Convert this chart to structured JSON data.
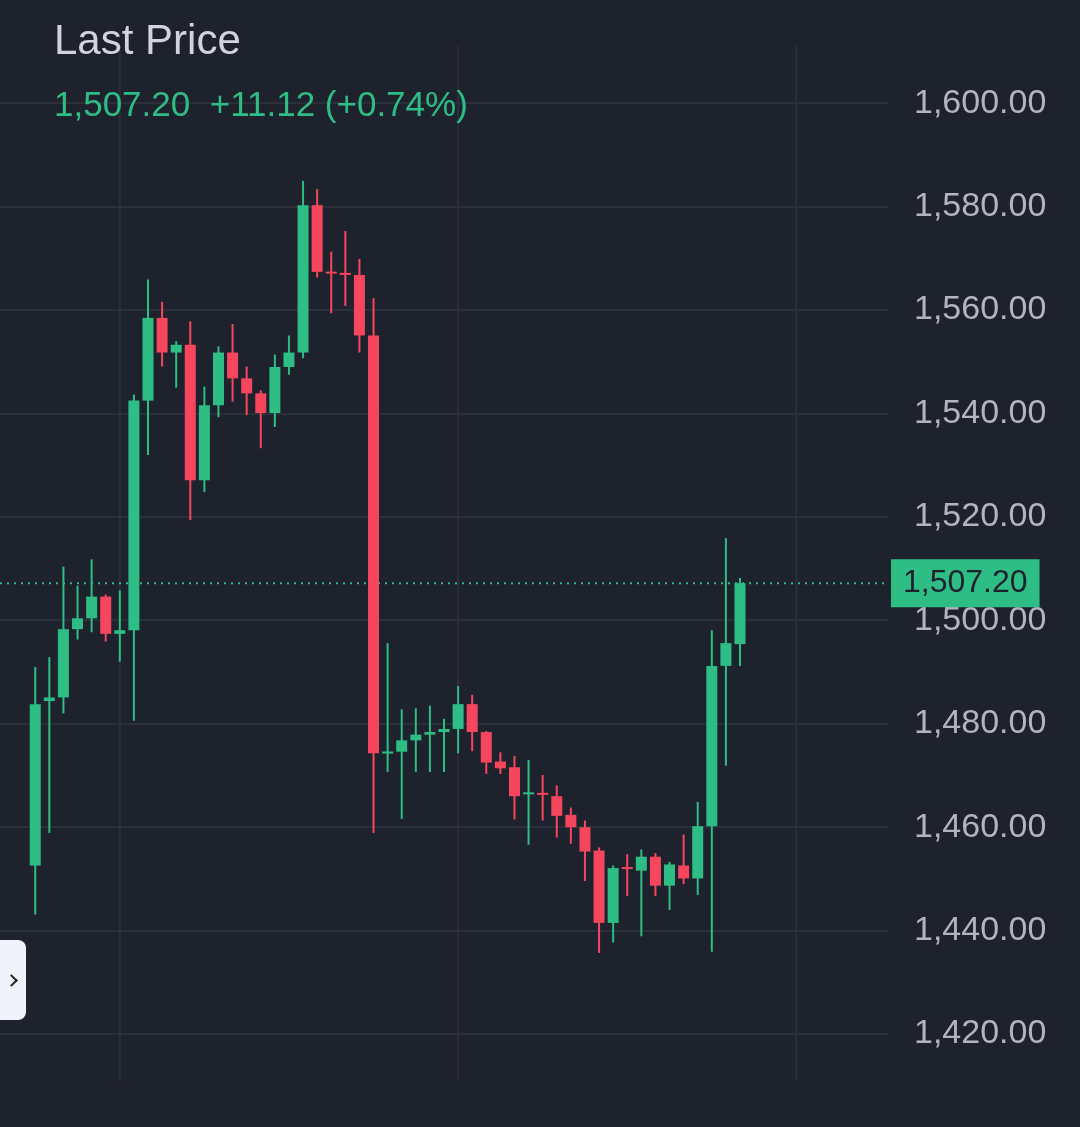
{
  "chart_data": {
    "type": "candlestick",
    "title": "Last Price",
    "subtitle": "1,507.20  +11.12 (+0.74%)",
    "categories": [
      null,
      null,
      null,
      null,
      null,
      null,
      null,
      null,
      null,
      null,
      null,
      null,
      null,
      null,
      null,
      null,
      null,
      null,
      null,
      null,
      null,
      null,
      null,
      null,
      null,
      null,
      null,
      null,
      null,
      null,
      null,
      null,
      null,
      null,
      null,
      null,
      null,
      null,
      null,
      null,
      null,
      null,
      null,
      null,
      null,
      null,
      null,
      null,
      null,
      null,
      null,
      null,
      null,
      null,
      null,
      null,
      null,
      null,
      null,
      null,
      null,
      null,
      null
    ],
    "ohlc": [
      null,
      null,
      [
        1452.6,
        1491.0,
        1443.1,
        1483.8
      ],
      [
        1484.4,
        1492.9,
        1458.9,
        1485.1
      ],
      [
        1485.1,
        1510.4,
        1482.0,
        1498.3
      ],
      [
        1498.3,
        1506.7,
        1496.3,
        1500.4
      ],
      [
        1500.4,
        1511.8,
        1497.7,
        1504.6
      ],
      [
        1504.6,
        1505.0,
        1495.9,
        1497.4
      ],
      [
        1497.4,
        1505.8,
        1492.0,
        1498.1
      ],
      [
        1498.1,
        1543.7,
        1480.6,
        1542.5
      ],
      [
        1542.5,
        1565.9,
        1532.0,
        1558.5
      ],
      [
        1558.5,
        1561.6,
        1549.1,
        1551.8
      ],
      [
        1551.8,
        1554.0,
        1545.0,
        1553.3
      ],
      [
        1553.3,
        1557.8,
        1519.4,
        1527.1
      ],
      [
        1527.1,
        1545.2,
        1524.8,
        1541.6
      ],
      [
        1541.6,
        1553.0,
        1539.3,
        1551.8
      ],
      [
        1551.8,
        1557.3,
        1542.3,
        1546.8
      ],
      [
        1546.8,
        1549.1,
        1539.7,
        1543.9
      ],
      [
        1543.9,
        1544.5,
        1533.3,
        1540.1
      ],
      [
        1540.1,
        1551.4,
        1537.4,
        1549.0
      ],
      [
        1549.0,
        1555.1,
        1547.5,
        1551.8
      ],
      [
        1551.8,
        1585.0,
        1550.7,
        1580.3
      ],
      [
        1580.3,
        1583.4,
        1566.3,
        1567.4
      ],
      [
        1567.4,
        1571.3,
        1559.4,
        1567.1
      ],
      [
        1567.2,
        1575.3,
        1560.8,
        1566.8
      ],
      [
        1566.8,
        1569.9,
        1551.8,
        1555.1
      ],
      [
        1555.1,
        1562.3,
        1458.9,
        1474.3
      ],
      [
        1474.3,
        1495.6,
        1470.7,
        1474.6
      ],
      [
        1474.6,
        1482.8,
        1461.6,
        1476.8
      ],
      [
        1476.8,
        1483.0,
        1470.7,
        1477.9
      ],
      [
        1477.9,
        1483.5,
        1470.7,
        1478.4
      ],
      [
        1478.4,
        1481.0,
        1470.7,
        1479.0
      ],
      [
        1479.0,
        1487.3,
        1474.3,
        1483.8
      ],
      [
        1483.8,
        1485.6,
        1474.7,
        1478.4
      ],
      [
        1478.4,
        1478.6,
        1470.3,
        1472.5
      ],
      [
        1472.7,
        1474.5,
        1470.3,
        1471.4
      ],
      [
        1471.6,
        1473.8,
        1461.5,
        1466.0
      ],
      [
        1466.5,
        1473.0,
        1456.6,
        1466.6
      ],
      [
        1466.5,
        1470.1,
        1461.3,
        1466.4
      ],
      [
        1466.0,
        1468.1,
        1458.0,
        1462.2
      ],
      [
        1462.4,
        1463.8,
        1456.8,
        1460.0
      ],
      [
        1460.0,
        1461.3,
        1449.6,
        1455.3
      ],
      [
        1455.5,
        1456.1,
        1435.7,
        1441.5
      ],
      [
        1441.5,
        1452.6,
        1437.7,
        1452.1
      ],
      [
        1452.2,
        1454.8,
        1446.7,
        1452.0
      ],
      [
        1451.6,
        1455.7,
        1438.9,
        1454.3
      ],
      [
        1454.3,
        1455.0,
        1446.7,
        1448.7
      ],
      [
        1448.7,
        1453.3,
        1444.0,
        1452.8
      ],
      [
        1452.6,
        1458.6,
        1449.0,
        1450.1
      ],
      [
        1450.1,
        1464.9,
        1446.9,
        1460.2
      ],
      [
        1460.2,
        1498.1,
        1435.9,
        1491.2
      ],
      [
        1491.2,
        1515.9,
        1471.9,
        1495.6
      ],
      [
        1495.4,
        1508.2,
        1491.2,
        1507.2
      ],
      null,
      null,
      null,
      null,
      null,
      null,
      null,
      null,
      null,
      null
    ],
    "colors": [
      null,
      null,
      "#2ebd85",
      "#2ebd85",
      "#2ebd85",
      "#2ebd85",
      "#2ebd85",
      "#f6465d",
      "#2ebd85",
      "#2ebd85",
      "#2ebd85",
      "#f6465d",
      "#2ebd85",
      "#f6465d",
      "#2ebd85",
      "#2ebd85",
      "#f6465d",
      "#f6465d",
      "#f6465d",
      "#2ebd85",
      "#2ebd85",
      "#2ebd85",
      "#f6465d",
      "#f6465d",
      "#f6465d",
      "#f6465d",
      "#f6465d",
      "#2ebd85",
      "#2ebd85",
      "#2ebd85",
      "#2ebd85",
      "#2ebd85",
      "#2ebd85",
      "#f6465d",
      "#f6465d",
      "#f6465d",
      "#f6465d",
      "#2ebd85",
      "#f6465d",
      "#f6465d",
      "#f6465d",
      "#f6465d",
      "#f6465d",
      "#2ebd85",
      "#f6465d",
      "#2ebd85",
      "#f6465d",
      "#2ebd85",
      "#f6465d",
      "#2ebd85",
      "#2ebd85",
      "#2ebd85",
      "#2ebd85",
      null,
      null,
      null,
      null,
      null,
      null,
      null,
      null,
      null,
      null
    ],
    "ylim": [
      1411,
      1611
    ],
    "yticks": [
      {
        "value": 1420,
        "label": "1,420.00"
      },
      {
        "value": 1440,
        "label": "1,440.00"
      },
      {
        "value": 1460,
        "label": "1,460.00"
      },
      {
        "value": 1480,
        "label": "1,480.00"
      },
      {
        "value": 1500,
        "label": "1,500.00"
      },
      {
        "value": 1520,
        "label": "1,520.00"
      },
      {
        "value": 1540,
        "label": "1,540.00"
      },
      {
        "value": 1560,
        "label": "1,560.00"
      },
      {
        "value": 1580,
        "label": "1,580.00"
      },
      {
        "value": 1600,
        "label": "1,600.00"
      }
    ],
    "grid": true,
    "tick_labels": "y",
    "ref_lines": [
      {
        "axis": "y",
        "value": 1507.2,
        "label": "1,507.20",
        "color": "#2ebd85",
        "line_style": "dotted"
      }
    ]
  }
}
